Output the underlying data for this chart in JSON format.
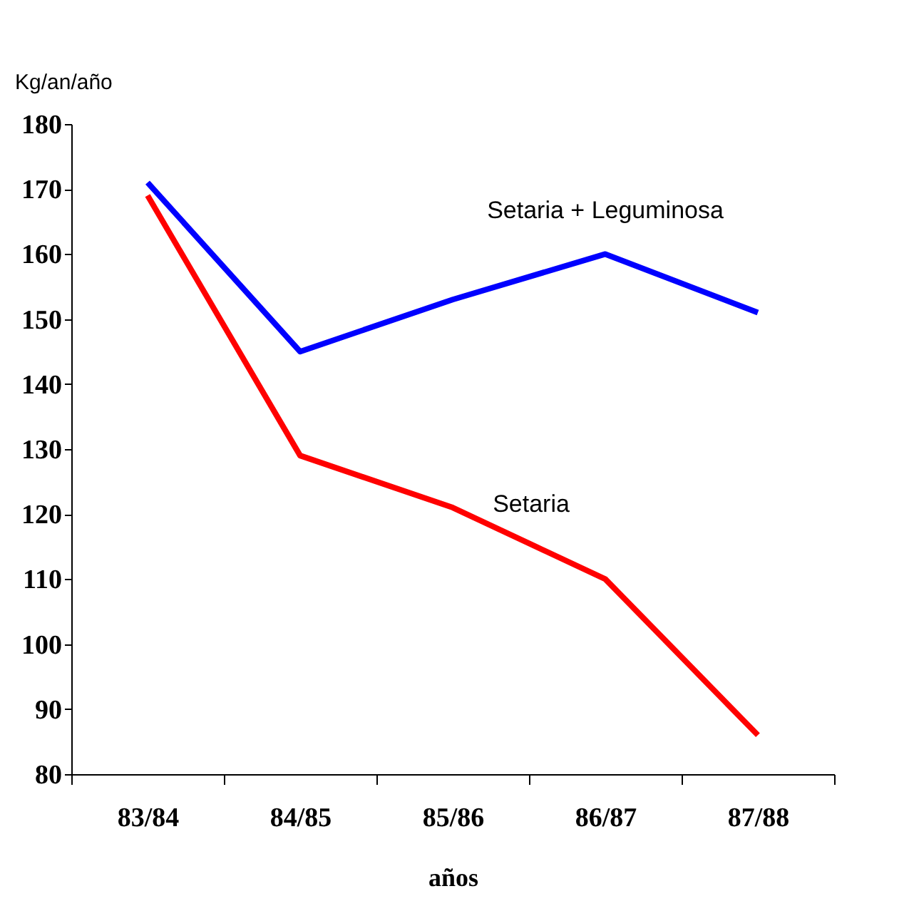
{
  "chart_data": {
    "type": "line",
    "ylabel": "Kg/an/año",
    "xlabel": "años",
    "categories": [
      "83/84",
      "84/85",
      "85/86",
      "86/87",
      "87/88"
    ],
    "series": [
      {
        "name": "Setaria + Leguminosa",
        "color": "#0000ff",
        "values": [
          171,
          145,
          153,
          160,
          151
        ]
      },
      {
        "name": "Setaria",
        "color": "#ff0000",
        "values": [
          169,
          129,
          121,
          110,
          86
        ]
      }
    ],
    "ylim": [
      80,
      180
    ],
    "yticks": [
      80,
      90,
      100,
      110,
      120,
      130,
      140,
      150,
      160,
      170,
      180
    ],
    "grid": false,
    "marker": "none",
    "line_style": "solid"
  }
}
